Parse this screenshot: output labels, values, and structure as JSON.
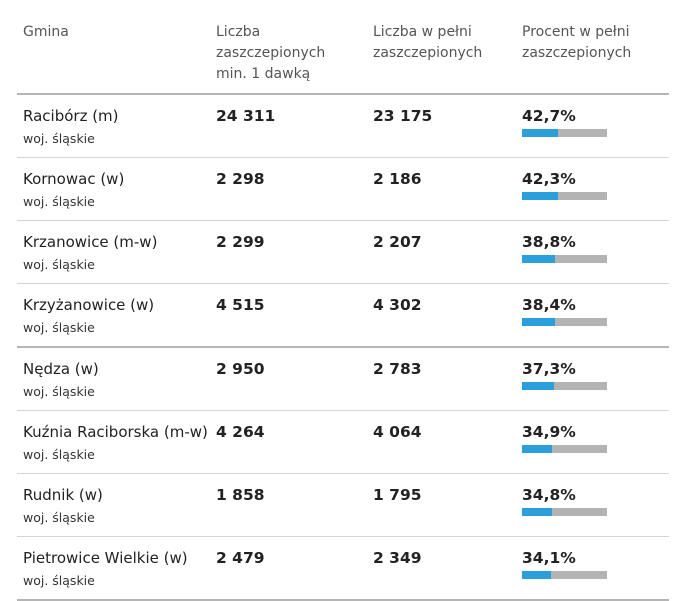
{
  "header": {
    "col_name": "Gmina",
    "col_min1": "Liczba\nzaszczepionych\nmin. 1 dawką",
    "col_full": "Liczba w pełni\nzaszczepionych",
    "col_pct": "Procent w pełni\nzaszczepionych"
  },
  "rows": [
    {
      "name": "Racibórz (m)",
      "region": "woj. śląskie",
      "min1": "24 311",
      "full": "23 175",
      "pct": "42,7%",
      "pct_value": 42.7
    },
    {
      "name": "Kornowac (w)",
      "region": "woj. śląskie",
      "min1": "2 298",
      "full": "2 186",
      "pct": "42,3%",
      "pct_value": 42.3
    },
    {
      "name": "Krzanowice (m-w)",
      "region": "woj. śląskie",
      "min1": "2 299",
      "full": "2 207",
      "pct": "38,8%",
      "pct_value": 38.8
    },
    {
      "name": "Krzyżanowice (w)",
      "region": "woj. śląskie",
      "min1": "4 515",
      "full": "4 302",
      "pct": "38,4%",
      "pct_value": 38.4
    },
    {
      "name": "Nędza (w)",
      "region": "woj. śląskie",
      "min1": "2 950",
      "full": "2 783",
      "pct": "37,3%",
      "pct_value": 37.3
    },
    {
      "name": "Kuźnia Raciborska (m-w)",
      "region": "woj. śląskie",
      "min1": "4 264",
      "full": "4 064",
      "pct": "34,9%",
      "pct_value": 34.9
    },
    {
      "name": "Rudnik (w)",
      "region": "woj. śląskie",
      "min1": "1 858",
      "full": "1 795",
      "pct": "34,8%",
      "pct_value": 34.8
    },
    {
      "name": "Pietrowice Wielkie (w)",
      "region": "woj. śląskie",
      "min1": "2 479",
      "full": "2 349",
      "pct": "34,1%",
      "pct_value": 34.1
    }
  ],
  "colors": {
    "bar_fill": "#2a9fdb",
    "bar_track": "#b3b3b3"
  }
}
